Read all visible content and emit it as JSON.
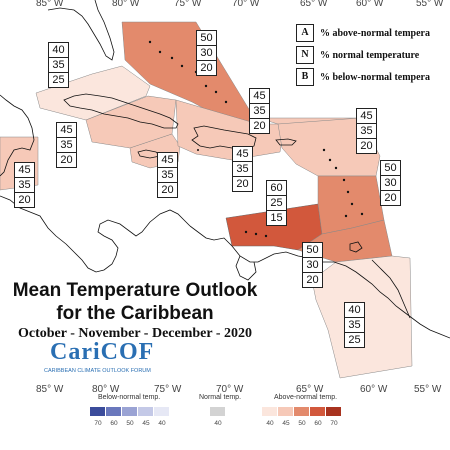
{
  "title": {
    "line1": "Mean Temperature Outlook",
    "line2": "for the Caribbean",
    "period": "October - November - December - 2020"
  },
  "logo": {
    "name": "CariCOF",
    "subtitle": "CARIBBEAN CLIMATE OUTLOOK FORUM"
  },
  "longitude_labels": [
    "85° W",
    "80° W",
    "75° W",
    "70° W",
    "65° W",
    "60° W",
    "55° W"
  ],
  "key_legend": [
    {
      "key": "A",
      "text": "% above-normal tempera"
    },
    {
      "key": "N",
      "text": "% normal temperature"
    },
    {
      "key": "B",
      "text": "% below-normal tempera"
    }
  ],
  "regions": [
    {
      "name": "bahamas",
      "A": "50",
      "N": "30",
      "B": "20",
      "color": "#e38a6c"
    },
    {
      "name": "cuba-north",
      "A": "40",
      "N": "35",
      "B": "25",
      "color": "#fbe6dd"
    },
    {
      "name": "cuba-central",
      "A": "45",
      "N": "35",
      "B": "20",
      "color": "#f6c9b8"
    },
    {
      "name": "central-america",
      "A": "45",
      "N": "35",
      "B": "20",
      "color": "#f6c9b8"
    },
    {
      "name": "jamaica",
      "A": "45",
      "N": "35",
      "B": "20",
      "color": "#f6c9b8"
    },
    {
      "name": "hispaniola",
      "A": "45",
      "N": "35",
      "B": "20",
      "color": "#f6c9b8"
    },
    {
      "name": "turks-caicos",
      "A": "45",
      "N": "35",
      "B": "20",
      "color": "#f6c9b8"
    },
    {
      "name": "leeward-islands",
      "A": "45",
      "N": "35",
      "B": "20",
      "color": "#f6c9b8"
    },
    {
      "name": "abc-islands",
      "A": "60",
      "N": "25",
      "B": "15",
      "color": "#d2583c"
    },
    {
      "name": "windward-islands",
      "A": "50",
      "N": "30",
      "B": "20",
      "color": "#e38a6c"
    },
    {
      "name": "trinidad",
      "A": "50",
      "N": "30",
      "B": "20",
      "color": "#e38a6c"
    },
    {
      "name": "guianas",
      "A": "40",
      "N": "35",
      "B": "25",
      "color": "#fbe6dd"
    }
  ],
  "bottom_legend": {
    "below_caption": "Below-normal temp.",
    "normal_caption": "Normal temp.",
    "above_caption": "Above-normal temp.",
    "below_swatches": [
      {
        "label": "70",
        "color": "#3b4c9b"
      },
      {
        "label": "60",
        "color": "#6a78bd"
      },
      {
        "label": "50",
        "color": "#9aa3d4"
      },
      {
        "label": "45",
        "color": "#c4c9e7"
      },
      {
        "label": "40",
        "color": "#e6e8f5"
      }
    ],
    "normal_swatch": {
      "label": "40",
      "color": "#d3d3d3"
    },
    "above_swatches": [
      {
        "label": "40",
        "color": "#fbe6dd"
      },
      {
        "label": "45",
        "color": "#f6c9b8"
      },
      {
        "label": "50",
        "color": "#e38a6c"
      },
      {
        "label": "60",
        "color": "#d2583c"
      },
      {
        "label": "70",
        "color": "#a8331f"
      }
    ]
  }
}
